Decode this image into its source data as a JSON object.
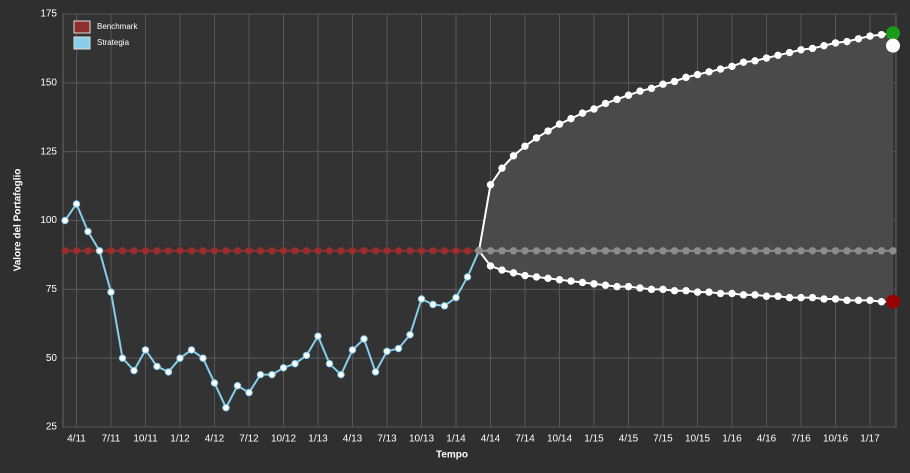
{
  "chart_data": {
    "type": "line",
    "x_label": "Tempo",
    "y_label": "Valore del Portafoglio",
    "categories": [
      null,
      "4/11",
      null,
      null,
      "7/11",
      null,
      null,
      "10/11",
      null,
      null,
      "1/12",
      null,
      null,
      "4/12",
      null,
      null,
      "7/12",
      null,
      null,
      "10/12",
      null,
      null,
      "1/13",
      null,
      null,
      "4/13",
      null,
      null,
      "7/13",
      null,
      null,
      "10/13",
      null,
      null,
      "1/14",
      null,
      null,
      "4/14",
      null,
      null,
      "7/14",
      null,
      null,
      "10/14",
      null,
      null,
      "1/15",
      null,
      null,
      "4/15",
      null,
      null,
      "7/15",
      null,
      null,
      "10/15",
      null,
      null,
      "1/16",
      null,
      null,
      "4/16",
      null,
      null,
      "7/16",
      null,
      null,
      "10/16",
      null,
      null,
      "1/17",
      null,
      null
    ],
    "ylim": [
      25,
      175
    ],
    "yticks": [
      25,
      50,
      75,
      100,
      125,
      150,
      175
    ],
    "grid": true,
    "legend": "top-left",
    "series": [
      {
        "name": "Benchmark",
        "color": "#8e2f2f",
        "marker_color": "#a02c2c",
        "values": [
          89,
          89,
          89,
          89,
          89,
          89,
          89,
          89,
          89,
          89,
          89,
          89,
          89,
          89,
          89,
          89,
          89,
          89,
          89,
          89,
          89,
          89,
          89,
          89,
          89,
          89,
          89,
          89,
          89,
          89,
          89,
          89,
          89,
          89,
          89,
          89,
          89,
          null,
          null,
          null,
          null,
          null,
          null,
          null,
          null,
          null,
          null,
          null,
          null,
          null,
          null,
          null,
          null,
          null,
          null,
          null,
          null,
          null,
          null,
          null,
          null,
          null,
          null,
          null,
          null,
          null,
          null,
          null,
          null,
          null,
          null,
          null,
          null
        ]
      },
      {
        "name": "Strategia",
        "color": "#87ceeb",
        "marker_color": "#ffffff",
        "values": [
          100,
          106,
          96,
          89,
          74,
          50,
          45.5,
          53,
          47,
          45,
          50,
          53,
          50,
          41,
          32,
          40,
          37.5,
          44,
          44,
          46.5,
          48,
          51,
          58,
          48,
          44,
          53,
          57,
          45,
          52.5,
          53.5,
          58.5,
          71.5,
          69.5,
          69,
          72,
          79.5,
          89,
          null,
          null,
          null,
          null,
          null,
          null,
          null,
          null,
          null,
          null,
          null,
          null,
          null,
          null,
          null,
          null,
          null,
          null,
          null,
          null,
          null,
          null,
          null,
          null,
          null,
          null,
          null,
          null,
          null,
          null,
          null,
          null,
          null,
          null,
          null,
          null
        ]
      },
      {
        "color": "#ffffff",
        "marker_color": "#ffffff",
        "end_marker_color": "#1a9c1a",
        "fill_to_next": "#4a4a4a",
        "values": [
          null,
          null,
          null,
          null,
          null,
          null,
          null,
          null,
          null,
          null,
          null,
          null,
          null,
          null,
          null,
          null,
          null,
          null,
          null,
          null,
          null,
          null,
          null,
          null,
          null,
          null,
          null,
          null,
          null,
          null,
          null,
          null,
          null,
          null,
          null,
          null,
          89,
          113,
          119,
          123.5,
          127,
          130,
          132.5,
          135,
          137,
          139,
          140.5,
          142.5,
          144,
          145.5,
          147,
          148,
          149.5,
          150.5,
          152,
          153,
          154,
          155,
          156,
          157.5,
          158,
          159,
          160,
          161,
          162,
          162.5,
          163.5,
          164.5,
          165,
          166,
          167,
          167.5,
          168
        ]
      },
      {
        "color": "#ffffff",
        "marker_color": "#ffffff",
        "end_marker_color": "#990000",
        "values": [
          null,
          null,
          null,
          null,
          null,
          null,
          null,
          null,
          null,
          null,
          null,
          null,
          null,
          null,
          null,
          null,
          null,
          null,
          null,
          null,
          null,
          null,
          null,
          null,
          null,
          null,
          null,
          null,
          null,
          null,
          null,
          null,
          null,
          null,
          null,
          null,
          89,
          83.5,
          82,
          81,
          80,
          79.5,
          79,
          78.5,
          78,
          77.5,
          77,
          76.5,
          76,
          76,
          75.5,
          75,
          75,
          74.5,
          74.5,
          74,
          74,
          73.5,
          73.5,
          73,
          73,
          72.5,
          72.5,
          72,
          72,
          72,
          71.5,
          71.5,
          71,
          71,
          71,
          70.5,
          70.5
        ]
      },
      {
        "color": "#8c8c8c",
        "marker_color": "#8c8c8c",
        "values": [
          null,
          null,
          null,
          null,
          null,
          null,
          null,
          null,
          null,
          null,
          null,
          null,
          null,
          null,
          null,
          null,
          null,
          null,
          null,
          null,
          null,
          null,
          null,
          null,
          null,
          null,
          null,
          null,
          null,
          null,
          null,
          null,
          null,
          null,
          null,
          null,
          89,
          89,
          89,
          89,
          89,
          89,
          89,
          89,
          89,
          89,
          89,
          89,
          89,
          89,
          89,
          89,
          89,
          89,
          89,
          89,
          89,
          89,
          89,
          89,
          89,
          89,
          89,
          89,
          89,
          89,
          89,
          89,
          89,
          89,
          89,
          89,
          89
        ]
      },
      {
        "color": "#ffffff",
        "marker_color": "#ffffff",
        "end_marker_color": "#ffffff",
        "values": [
          null,
          null,
          null,
          null,
          null,
          null,
          null,
          null,
          null,
          null,
          null,
          null,
          null,
          null,
          null,
          null,
          null,
          null,
          null,
          null,
          null,
          null,
          null,
          null,
          null,
          null,
          null,
          null,
          null,
          null,
          null,
          null,
          null,
          null,
          null,
          null,
          null,
          null,
          null,
          null,
          null,
          null,
          null,
          null,
          null,
          null,
          null,
          null,
          null,
          null,
          null,
          null,
          null,
          null,
          null,
          null,
          null,
          null,
          null,
          null,
          null,
          null,
          null,
          null,
          null,
          null,
          null,
          null,
          null,
          null,
          null,
          null,
          163.5
        ]
      }
    ]
  }
}
